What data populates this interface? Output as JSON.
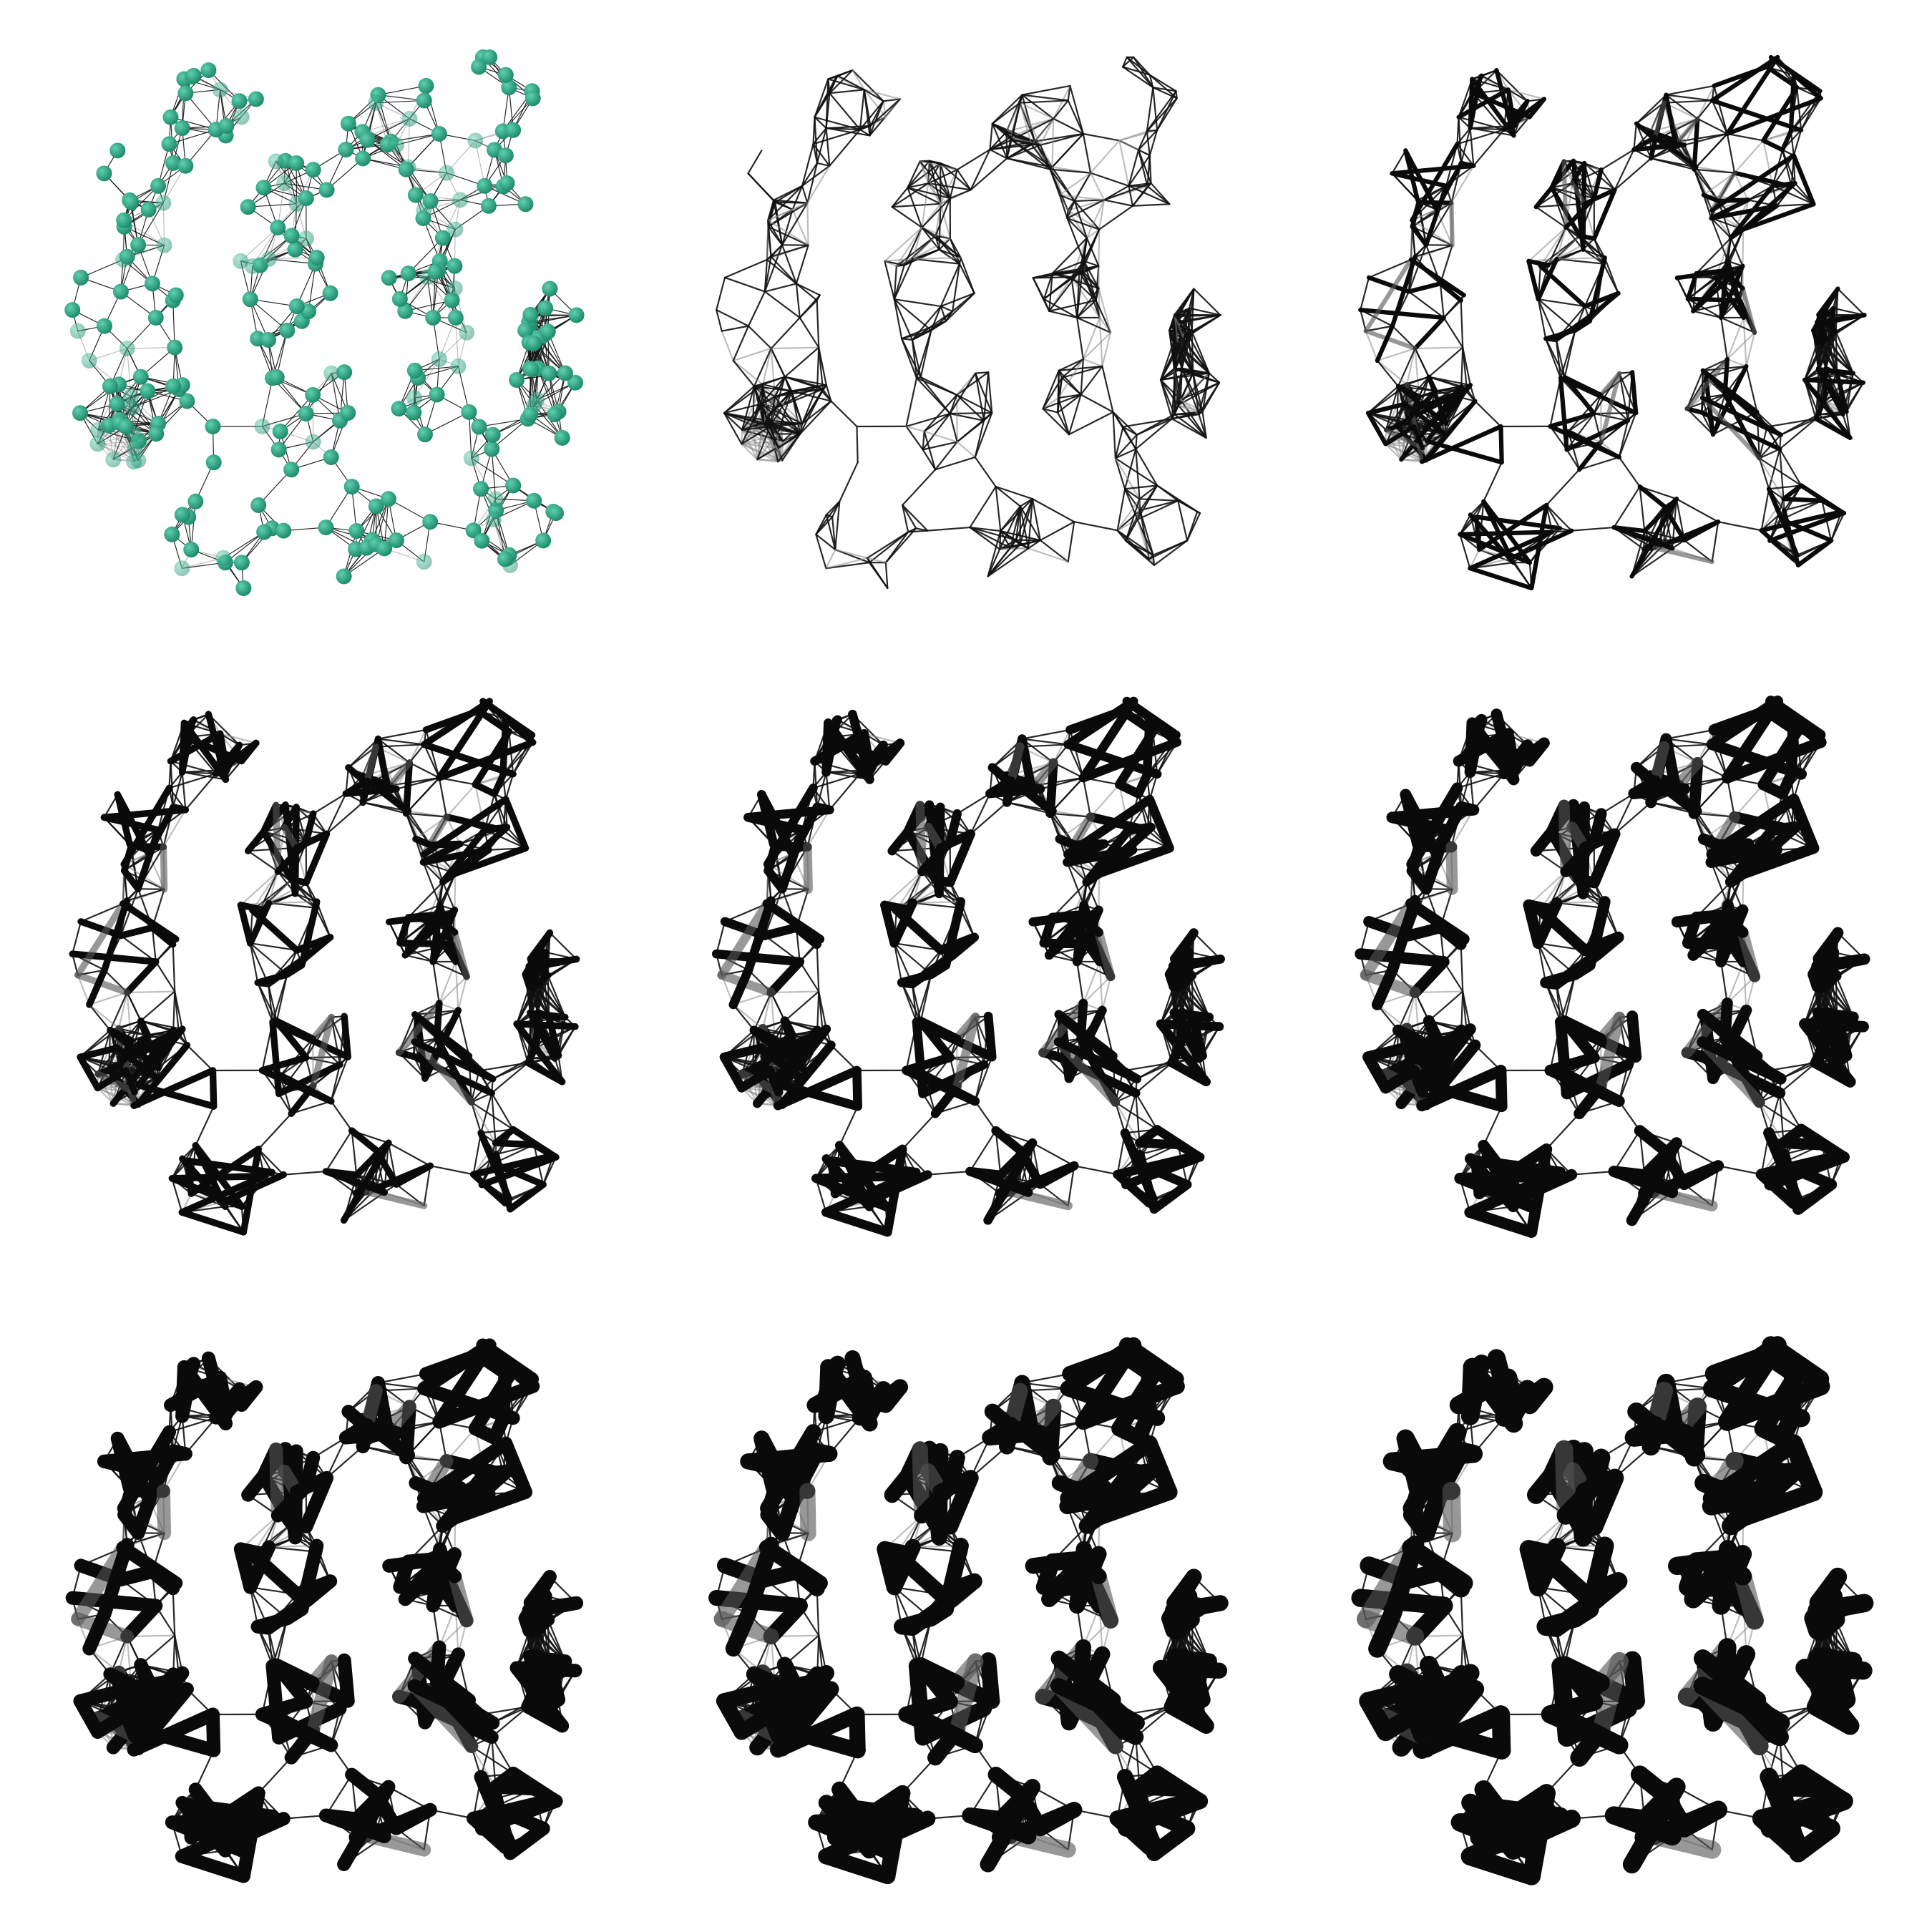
{
  "figure": {
    "description_visible_text": "",
    "layout": {
      "rows": 3,
      "columns": 3
    },
    "colors": {
      "background": "#ffffff",
      "node_fill": "#1f8c6e",
      "node_highlight": "#5fd0ad",
      "edge": "#111111",
      "edge_faded": "#8a8a8a"
    },
    "panels": [
      {
        "id": "p1",
        "style": "spheres",
        "thick_level": 0
      },
      {
        "id": "p2",
        "style": "wire",
        "thick_level": 0
      },
      {
        "id": "p3",
        "style": "wire",
        "thick_level": 1
      },
      {
        "id": "p4",
        "style": "wire",
        "thick_level": 2
      },
      {
        "id": "p5",
        "style": "wire",
        "thick_level": 3
      },
      {
        "id": "p6",
        "style": "wire",
        "thick_level": 4
      },
      {
        "id": "p7",
        "style": "wire",
        "thick_level": 5
      },
      {
        "id": "p8",
        "style": "wire",
        "thick_level": 6
      },
      {
        "id": "p9",
        "style": "wire",
        "thick_level": 7
      }
    ]
  }
}
